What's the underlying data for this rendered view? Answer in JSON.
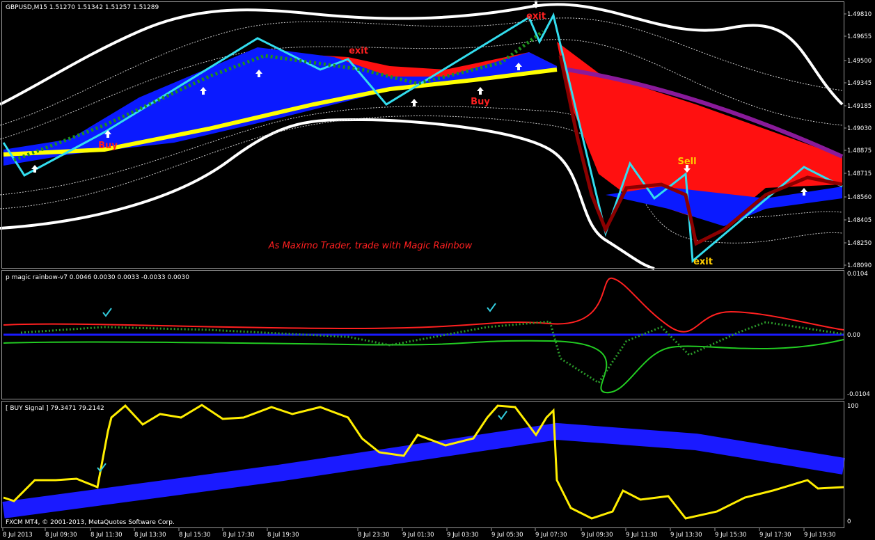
{
  "main": {
    "header": "GBPUSD,M15  1.51270 1.51342 1.51257 1.51289",
    "price_labels": [
      "1.49810",
      "1.49655",
      "1.49500",
      "1.49345",
      "1.49185",
      "1.49030",
      "1.48875",
      "1.48715",
      "1.48560",
      "1.48405",
      "1.48250",
      "1.48090"
    ],
    "slogan": "As Maximo Trader, trade with Magic Rainbow",
    "annotations": [
      "Buy",
      "exit",
      "Buy",
      "exit",
      "Sell",
      "exit"
    ]
  },
  "rainbow": {
    "header": "p magic rainbow-v7 0.0046 0.0030 0.0033 -0.0033 0.0030",
    "labels": [
      "0.0104",
      "0.00",
      "-0.0104"
    ]
  },
  "signal": {
    "header": "[ BUY Signal ]  79.3471 79.2142",
    "labels": [
      "100",
      "0"
    ],
    "copyright": "FXCM MT4, © 2001-2013, MetaQuotes Software Corp."
  },
  "time_labels": [
    "8 Jul 2013",
    "8 Jul 09:30",
    "8 Jul 11:30",
    "8 Jul 13:30",
    "8 Jul 15:30",
    "8 Jul 17:30",
    "8 Jul 19:30",
    "8 Jul 23:30",
    "9 Jul 01:30",
    "9 Jul 03:30",
    "9 Jul 05:30",
    "9 Jul 07:30",
    "9 Jul 09:30",
    "9 Jul 11:30",
    "9 Jul 13:30",
    "9 Jul 15:30",
    "9 Jul 17:30",
    "9 Jul 19:30"
  ]
}
